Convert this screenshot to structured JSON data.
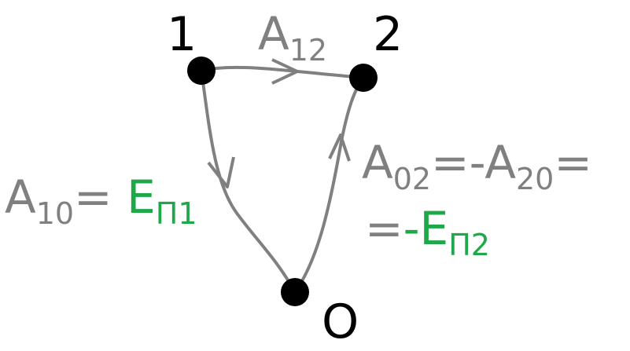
{
  "colors": {
    "point": "#000000",
    "edge": "#808080",
    "work_text": "#808080",
    "energy_text": "#1fa84a"
  },
  "points": {
    "p1": "1",
    "p2": "2",
    "p0": "O"
  },
  "edges": {
    "a12": {
      "main": "A",
      "sub": "12"
    },
    "a10": {
      "main": "A",
      "sub": "10",
      "eq": "="
    },
    "a02": {
      "main": "A",
      "sub": "02",
      "eq": "="
    },
    "a20": {
      "neg": "-",
      "main": "A",
      "sub": "20",
      "eq": "="
    }
  },
  "energies": {
    "ep1": {
      "main": "E",
      "sub": "П1"
    },
    "ep2": {
      "prefix": "=",
      "neg": "-",
      "main": "E",
      "sub": "П2"
    }
  }
}
